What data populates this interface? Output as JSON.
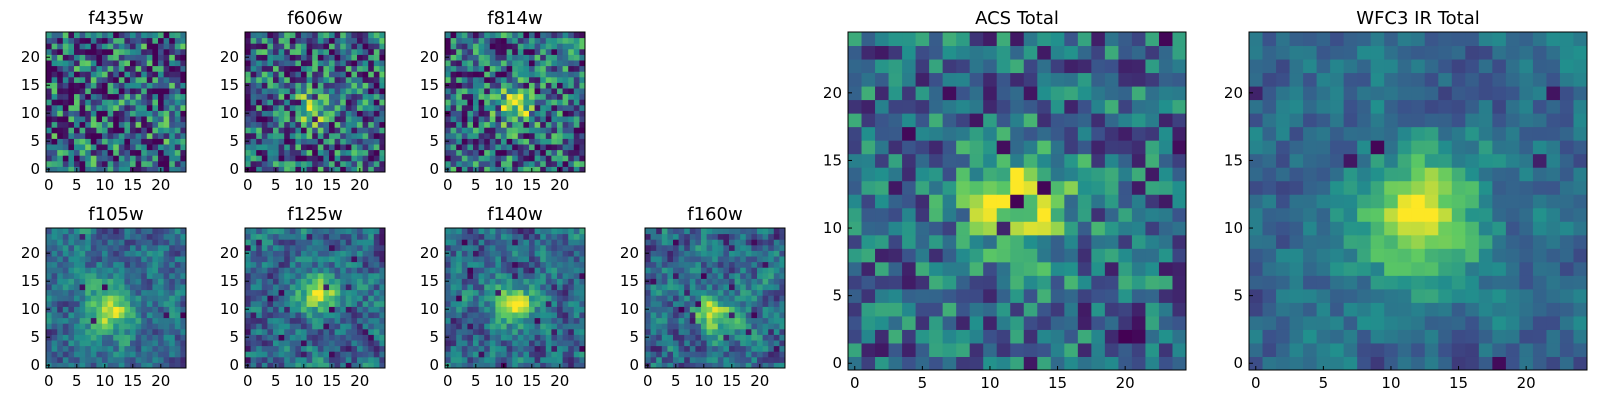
{
  "chart_data": {
    "type": "heatmap",
    "colormap": "viridis",
    "colormap_colors": [
      "#440154",
      "#3b528b",
      "#21908d",
      "#5dc963",
      "#fde725"
    ],
    "grid_size": [
      25,
      25
    ],
    "panels": [
      {
        "title": "f435w",
        "xticks": [
          "0",
          "5",
          "10",
          "15",
          "20"
        ],
        "yticks": [
          "0",
          "5",
          "10",
          "15",
          "20"
        ],
        "xlim": [
          0,
          24
        ],
        "ylim": [
          0,
          24
        ],
        "center": [
          12,
          12
        ],
        "peak_radius": 0.0,
        "noise": 0.55,
        "dark_rate": 0.07,
        "smooth": 0,
        "seed": 11
      },
      {
        "title": "f606w",
        "xticks": [
          "0",
          "5",
          "10",
          "15",
          "20"
        ],
        "yticks": [
          "0",
          "5",
          "10",
          "15",
          "20"
        ],
        "xlim": [
          0,
          24
        ],
        "ylim": [
          0,
          24
        ],
        "center": [
          12,
          11
        ],
        "peak_radius": 2.0,
        "noise": 0.5,
        "dark_rate": 0.06,
        "smooth": 0,
        "seed": 23
      },
      {
        "title": "f814w",
        "xticks": [
          "0",
          "5",
          "10",
          "15",
          "20"
        ],
        "yticks": [
          "0",
          "5",
          "10",
          "15",
          "20"
        ],
        "xlim": [
          0,
          24
        ],
        "ylim": [
          0,
          24
        ],
        "center": [
          12,
          11
        ],
        "peak_radius": 2.2,
        "noise": 0.5,
        "dark_rate": 0.07,
        "smooth": 0,
        "seed": 37
      },
      {
        "title": "f105w",
        "xticks": [
          "0",
          "5",
          "10",
          "15",
          "20"
        ],
        "yticks": [
          "0",
          "5",
          "10",
          "15",
          "20"
        ],
        "xlim": [
          0,
          24
        ],
        "ylim": [
          0,
          24
        ],
        "center": [
          11,
          10
        ],
        "peak_radius": 3.0,
        "noise": 0.4,
        "dark_rate": 0.02,
        "smooth": 1,
        "seed": 41
      },
      {
        "title": "f125w",
        "xticks": [
          "0",
          "5",
          "10",
          "15",
          "20"
        ],
        "yticks": [
          "0",
          "5",
          "10",
          "15",
          "20"
        ],
        "xlim": [
          0,
          24
        ],
        "ylim": [
          0,
          24
        ],
        "center": [
          13,
          13
        ],
        "peak_radius": 2.5,
        "noise": 0.45,
        "dark_rate": 0.03,
        "smooth": 1,
        "seed": 53
      },
      {
        "title": "f140w",
        "xticks": [
          "0",
          "5",
          "10",
          "15",
          "20"
        ],
        "yticks": [
          "0",
          "5",
          "10",
          "15",
          "20"
        ],
        "xlim": [
          0,
          24
        ],
        "ylim": [
          0,
          24
        ],
        "center": [
          12,
          11
        ],
        "peak_radius": 2.5,
        "noise": 0.45,
        "dark_rate": 0.03,
        "smooth": 1,
        "seed": 67
      },
      {
        "title": "f160w",
        "xticks": [
          "0",
          "5",
          "10",
          "15",
          "20"
        ],
        "yticks": [
          "0",
          "5",
          "10",
          "15",
          "20"
        ],
        "xlim": [
          0,
          24
        ],
        "ylim": [
          0,
          24
        ],
        "center": [
          12,
          9
        ],
        "peak_radius": 2.5,
        "noise": 0.45,
        "dark_rate": 0.04,
        "smooth": 1,
        "seed": 79
      },
      {
        "title": "ACS Total",
        "xticks": [
          "0",
          "5",
          "10",
          "15",
          "20"
        ],
        "yticks": [
          "0",
          "5",
          "10",
          "15",
          "20"
        ],
        "xlim": [
          0,
          24
        ],
        "ylim": [
          0,
          24
        ],
        "center": [
          12,
          12
        ],
        "peak_radius": 3.0,
        "noise": 0.35,
        "dark_rate": 0.03,
        "smooth": 0,
        "seed": 97
      },
      {
        "title": "WFC3 IR Total",
        "xticks": [
          "0",
          "5",
          "10",
          "15",
          "20"
        ],
        "yticks": [
          "0",
          "5",
          "10",
          "15",
          "20"
        ],
        "xlim": [
          0,
          24
        ],
        "ylim": [
          0,
          24
        ],
        "center": [
          12,
          11
        ],
        "peak_radius": 3.5,
        "noise": 0.3,
        "dark_rate": 0.02,
        "smooth": 1,
        "seed": 101
      }
    ]
  }
}
